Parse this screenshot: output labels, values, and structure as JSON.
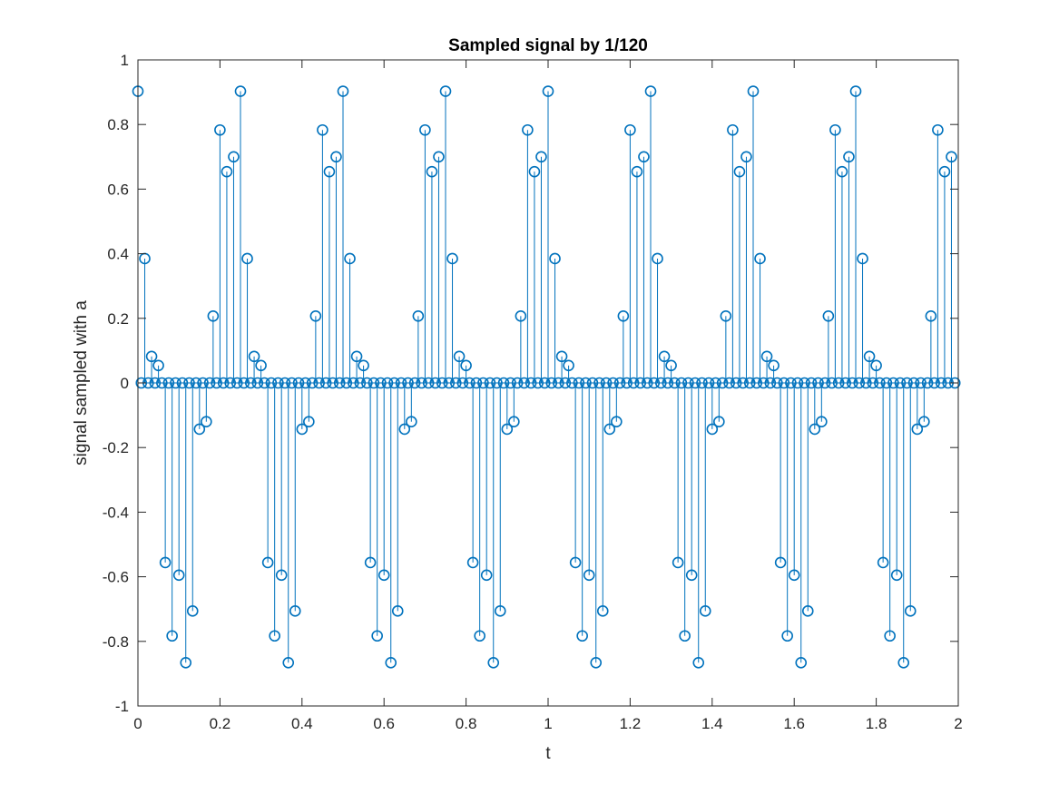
{
  "chart_data": {
    "type": "scatter",
    "style": "stem",
    "title": "Sampled signal by 1/120",
    "xlabel": "t",
    "ylabel": "signal sampled with a",
    "xlim": [
      0,
      2
    ],
    "ylim": [
      -1,
      1
    ],
    "x_ticks": [
      "0",
      "0.2",
      "0.4",
      "0.6",
      "0.8",
      "1",
      "1.2",
      "1.4",
      "1.6",
      "1.8",
      "2"
    ],
    "y_ticks": [
      "-1",
      "-0.8",
      "-0.6",
      "-0.4",
      "-0.2",
      "0",
      "0.2",
      "0.4",
      "0.6",
      "0.8",
      "1"
    ],
    "grid": false,
    "box": true,
    "color": "#0072bd",
    "sample_period": "1/120",
    "period_samples": 30,
    "x_start": 0,
    "x_end": 1.9917,
    "period_values": [
      0.903,
      0.385,
      0.082,
      0.054,
      -0.556,
      -0.783,
      -0.595,
      -0.866,
      -0.706,
      -0.143,
      -0.12,
      0.207,
      0.783,
      0.654,
      0.7,
      0.903,
      0.385,
      0.082,
      0.054,
      -0.556,
      -0.783,
      -0.595,
      -0.866,
      -0.706,
      -0.143,
      -0.12,
      0.207,
      0.783,
      0.654,
      0.7
    ],
    "zero_samples_between_nonzero": 1
  }
}
